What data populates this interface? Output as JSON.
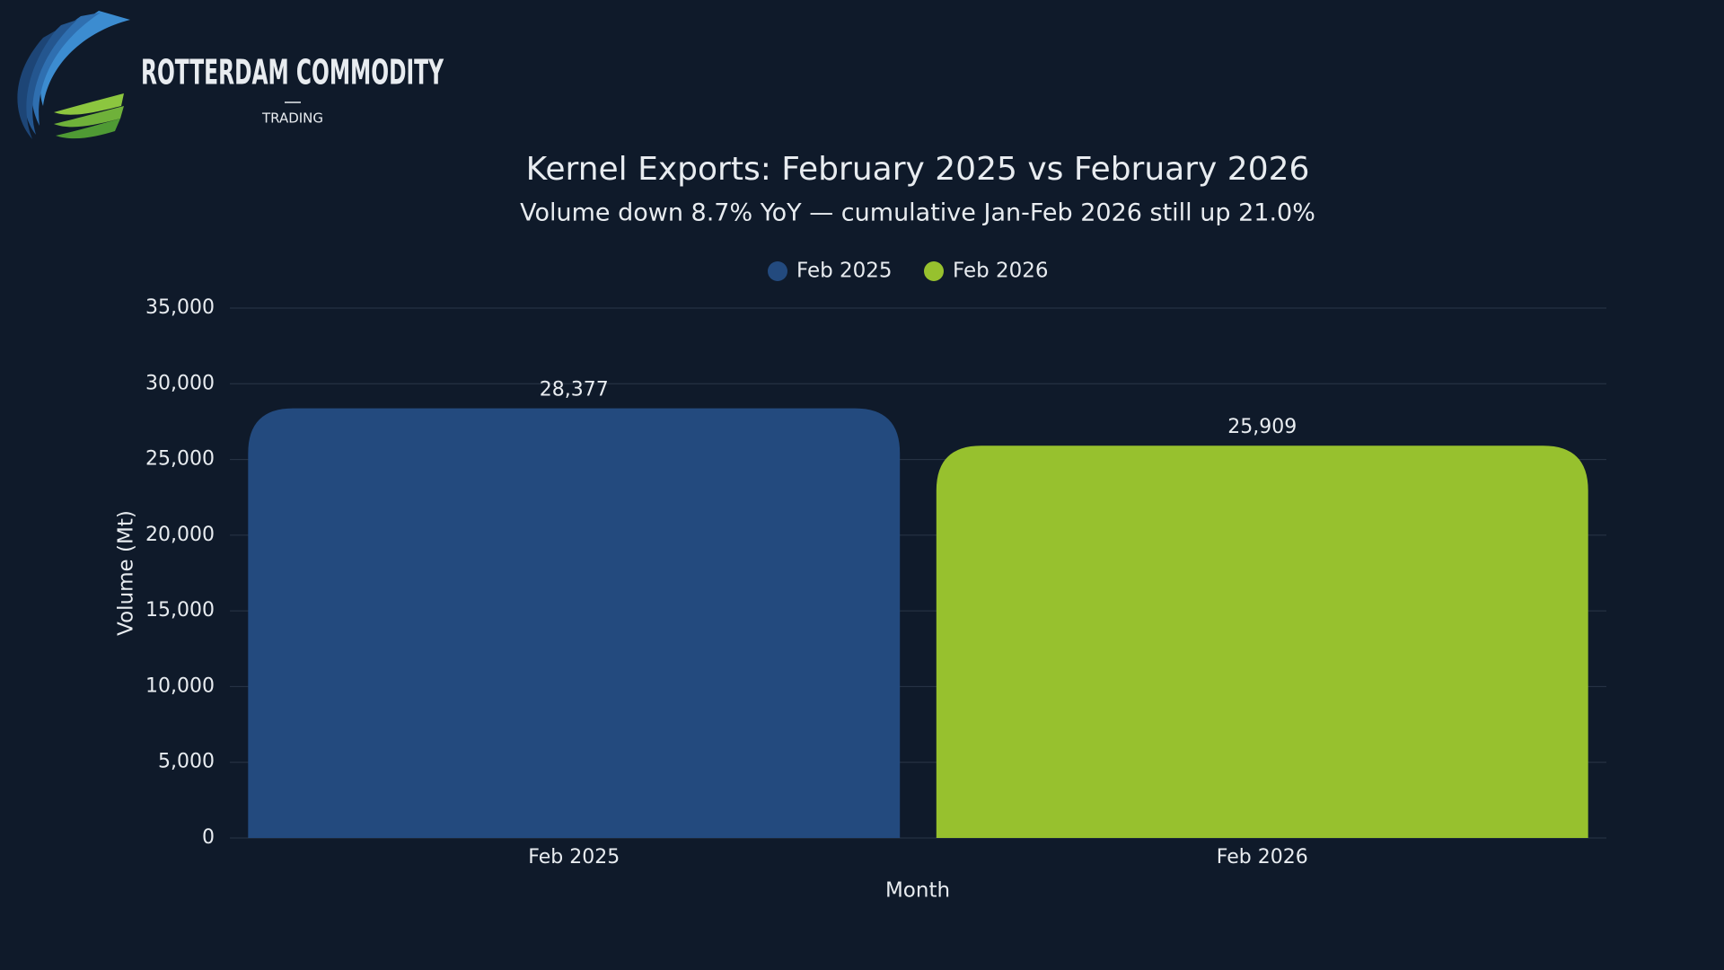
{
  "logo": {
    "name": "ROTTERDAM COMMODITY",
    "tagline": "TRADING"
  },
  "chart_data": {
    "type": "bar",
    "title": "Kernel Exports: February 2025 vs February 2026",
    "subtitle": "Volume down 8.7% YoY — cumulative Jan-Feb 2026 still up 21.0%",
    "x_label": "Month",
    "y_label": "Volume (Mt)",
    "categories": [
      "Feb 2025",
      "Feb 2026"
    ],
    "values": [
      28377,
      25909
    ],
    "value_labels": [
      "28,377",
      "25,909"
    ],
    "colors": [
      "#234a7e",
      "#97c12e"
    ],
    "legend": true,
    "legend_position": "top",
    "ylim": [
      0,
      35000
    ],
    "yticks": [
      0,
      {
        "value": 5000,
        "label": "5,000"
      },
      {
        "value": 10000,
        "label": "10,000"
      },
      {
        "value": 15000,
        "label": "15,000"
      },
      {
        "value": 20000,
        "label": "20,000"
      },
      {
        "value": 25000,
        "label": "25,000"
      },
      {
        "value": 30000,
        "label": "30,000"
      },
      {
        "value": 35000,
        "label": "35,000"
      }
    ],
    "grid": true
  }
}
